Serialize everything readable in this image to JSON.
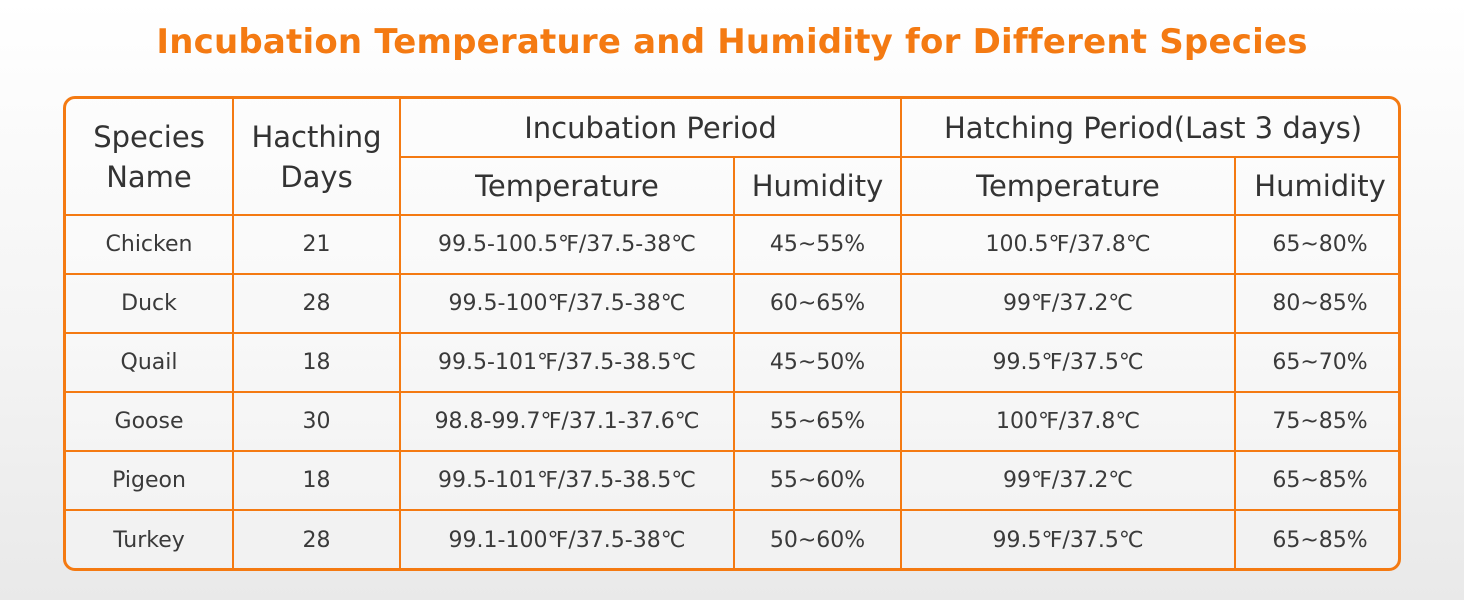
{
  "title": "Incubation Temperature and Humidity for Different Species",
  "headers": {
    "species_name": "Species Name",
    "hatching_days": "Hacthing Days",
    "incubation_period": "Incubation Period",
    "hatching_period": "Hatching Period(Last 3 days)",
    "temperature": "Temperature",
    "humidity": "Humidity"
  },
  "rows": [
    {
      "species": "Chicken",
      "days": "21",
      "inc_temp": "99.5-100.5℉/37.5-38℃",
      "inc_hum": "45~55%",
      "hat_temp": "100.5℉/37.8℃",
      "hat_hum": "65~80%"
    },
    {
      "species": "Duck",
      "days": "28",
      "inc_temp": "99.5-100℉/37.5-38℃",
      "inc_hum": "60~65%",
      "hat_temp": "99℉/37.2℃",
      "hat_hum": "80~85%"
    },
    {
      "species": "Quail",
      "days": "18",
      "inc_temp": "99.5-101℉/37.5-38.5℃",
      "inc_hum": "45~50%",
      "hat_temp": "99.5℉/37.5℃",
      "hat_hum": "65~70%"
    },
    {
      "species": "Goose",
      "days": "30",
      "inc_temp": "98.8-99.7℉/37.1-37.6℃",
      "inc_hum": "55~65%",
      "hat_temp": "100℉/37.8℃",
      "hat_hum": "75~85%"
    },
    {
      "species": "Pigeon",
      "days": "18",
      "inc_temp": "99.5-101℉/37.5-38.5℃",
      "inc_hum": "55~60%",
      "hat_temp": "99℉/37.2℃",
      "hat_hum": "65~85%"
    },
    {
      "species": "Turkey",
      "days": "28",
      "inc_temp": "99.1-100℉/37.5-38℃",
      "inc_hum": "50~60%",
      "hat_temp": "99.5℉/37.5℃",
      "hat_hum": "65~85%"
    }
  ],
  "colors": {
    "accent": "#f47a12",
    "text": "#3a3a3a"
  }
}
